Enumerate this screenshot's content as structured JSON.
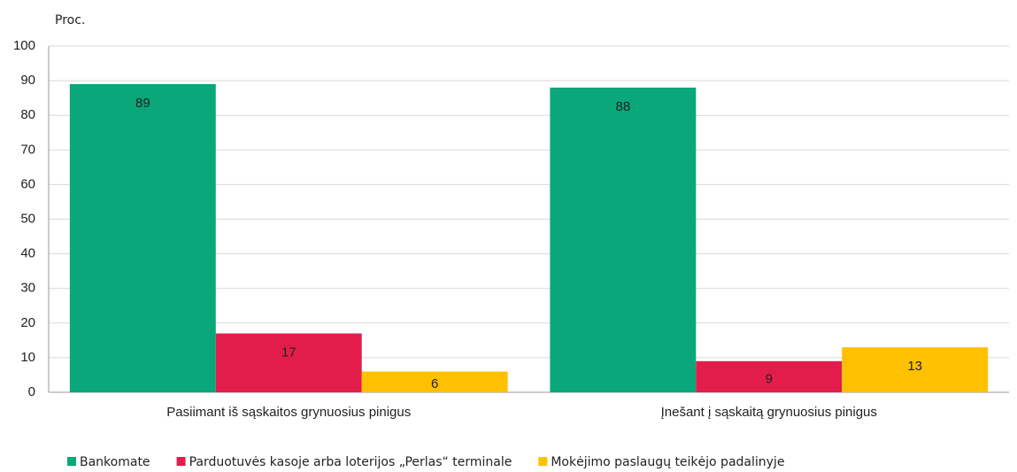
{
  "chart_data": {
    "type": "bar",
    "y_axis_label": "Proc.",
    "categories": [
      "Pasiimant iš sąskaitos grynuosius pinigus",
      "Įnešant į sąskaitą grynuosius pinigus"
    ],
    "series": [
      {
        "name": "Bankomate",
        "color": "#0aa77a",
        "values": [
          89,
          88
        ]
      },
      {
        "name": "Parduotuvės kasoje arba loterijos „Perlas“ terminale",
        "color": "#e31d4b",
        "values": [
          17,
          9
        ]
      },
      {
        "name": "Mokėjimo paslaugų teikėjo padalinyje",
        "color": "#ffc000",
        "values": [
          6,
          13
        ]
      }
    ],
    "ylim": [
      0,
      100
    ],
    "yticks": [
      0,
      10,
      20,
      30,
      40,
      50,
      60,
      70,
      80,
      90,
      100
    ],
    "grid": true,
    "legend": "bottom"
  }
}
